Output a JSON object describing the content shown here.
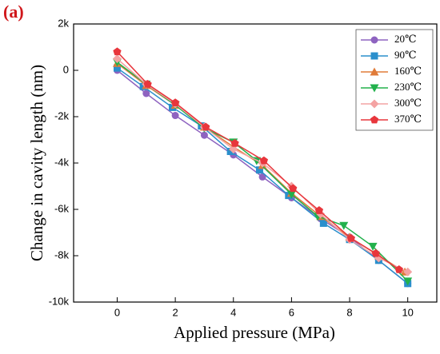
{
  "label": "(a)",
  "chart_data": {
    "type": "line",
    "xlabel": "Applied pressure (MPa)",
    "ylabel": "Change in cavity length (nm)",
    "xlim": [
      -1.5,
      11
    ],
    "ylim": [
      -10000,
      2000
    ],
    "xticks": [
      0,
      2,
      4,
      6,
      8,
      10
    ],
    "yticks": [
      {
        "value": 2000,
        "label": "2k"
      },
      0,
      {
        "value": -2000,
        "label": "-2k"
      },
      {
        "value": -4000,
        "label": "-4k"
      },
      {
        "value": -6000,
        "label": "-6k"
      },
      {
        "value": -8000,
        "label": "-8k"
      },
      {
        "value": -10000,
        "label": "-10k"
      }
    ],
    "legend": "top-right",
    "series": [
      {
        "name": "20℃",
        "color": "#8e63c0",
        "marker": "circle",
        "x": [
          0,
          1,
          2,
          3,
          4,
          5,
          6,
          7,
          8,
          9,
          10
        ],
        "values": [
          0,
          -1000,
          -1950,
          -2800,
          -3650,
          -4600,
          -5500,
          -6400,
          -7200,
          -8200,
          -9200
        ]
      },
      {
        "name": "90℃",
        "color": "#2a8fcc",
        "marker": "square",
        "x": [
          0,
          0.9,
          1.9,
          2.9,
          3.9,
          4.9,
          5.9,
          7.1,
          8,
          9,
          10
        ],
        "values": [
          100,
          -700,
          -1600,
          -2400,
          -3500,
          -4300,
          -5400,
          -6600,
          -7300,
          -8200,
          -9200
        ]
      },
      {
        "name": "160℃",
        "color": "#e07b39",
        "marker": "triangle-up",
        "x": [
          0,
          1,
          2,
          3,
          4,
          5,
          6,
          7,
          8,
          9,
          9.9
        ],
        "values": [
          300,
          -650,
          -1500,
          -2450,
          -3300,
          -4100,
          -5300,
          -6300,
          -7200,
          -8000,
          -8700
        ]
      },
      {
        "name": "230℃",
        "color": "#22b14c",
        "marker": "triangle-down",
        "x": [
          0,
          1,
          2,
          3,
          4,
          4.8,
          6,
          6.9,
          7.8,
          8.8,
          10
        ],
        "values": [
          350,
          -600,
          -1500,
          -2500,
          -3100,
          -3900,
          -5350,
          -6300,
          -6700,
          -7600,
          -9100
        ]
      },
      {
        "name": "300℃",
        "color": "#f4a3a3",
        "marker": "diamond",
        "x": [
          0,
          1,
          2,
          3,
          4,
          5,
          6,
          7,
          8,
          9,
          10
        ],
        "values": [
          500,
          -600,
          -1450,
          -2450,
          -3400,
          -4000,
          -5000,
          -6200,
          -7300,
          -8100,
          -8700
        ]
      },
      {
        "name": "370℃",
        "color": "#e8363c",
        "marker": "pentagon",
        "x": [
          0,
          1.05,
          2,
          3.05,
          4.05,
          5.05,
          6.05,
          6.95,
          8.05,
          8.9,
          9.7
        ],
        "values": [
          800,
          -600,
          -1400,
          -2450,
          -3150,
          -3900,
          -5100,
          -6050,
          -7250,
          -7900,
          -8600
        ]
      }
    ]
  }
}
